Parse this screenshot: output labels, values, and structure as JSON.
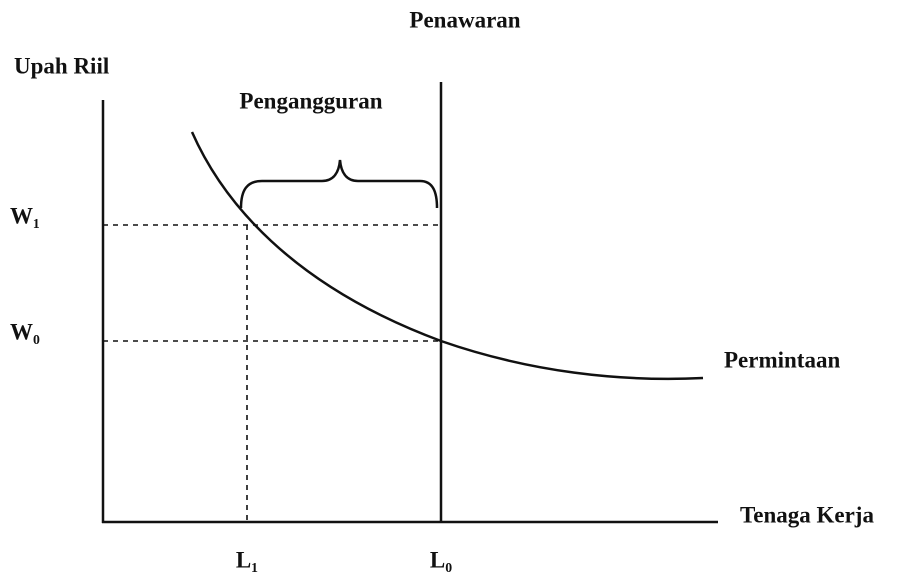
{
  "supply_label": "Penawaran",
  "y_axis_label": "Upah Riil",
  "unemployment_label": "Pengangguran",
  "w1_label": "W₁",
  "w0_label": "W₀",
  "demand_label": "Permintaan",
  "x_axis_label": "Tenaga Kerja",
  "l1_label": "L₁",
  "l0_label": "L₀"
}
